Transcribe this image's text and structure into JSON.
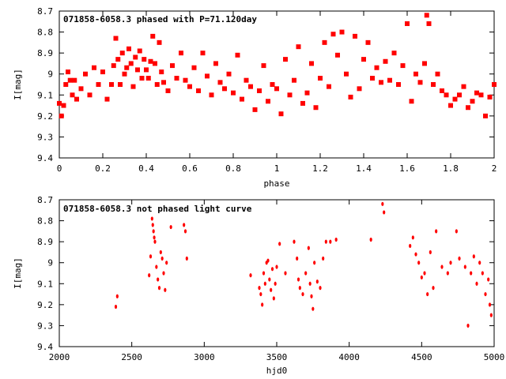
{
  "colors": {
    "points": "#ff0000",
    "axes": "#000000",
    "background": "#ffffff"
  },
  "chart_data": [
    {
      "type": "scatter",
      "title": "071858-6058.3 phased with P=71.120day",
      "xlabel": "phase",
      "ylabel": "I[mag]",
      "xlim": [
        0,
        2
      ],
      "ylim": [
        9.4,
        8.7
      ],
      "y_inverted": true,
      "x_ticks": [
        "0",
        "0.2",
        "0.4",
        "0.6",
        "0.8",
        "1",
        "1.2",
        "1.4",
        "1.6",
        "1.8",
        "2"
      ],
      "y_ticks": [
        "8.7",
        "8.8",
        "8.9",
        "9",
        "9.1",
        "9.2",
        "9.3",
        "9.4"
      ],
      "grid": false,
      "series": [
        {
          "x": [
            0.0,
            0.01,
            0.02,
            0.03,
            0.04,
            0.05,
            0.06,
            0.07,
            0.08,
            0.1,
            0.12,
            0.14,
            0.16,
            0.18,
            0.2,
            0.22,
            0.24,
            0.25,
            0.26,
            0.27,
            0.28,
            0.29,
            0.3,
            0.31,
            0.32,
            0.33,
            0.34,
            0.35,
            0.36,
            0.37,
            0.38,
            0.39,
            0.4,
            0.41,
            0.42,
            0.43,
            0.44,
            0.45,
            0.46,
            0.47,
            0.48,
            0.5,
            0.52,
            0.54,
            0.56,
            0.58,
            0.6,
            0.62,
            0.64,
            0.66,
            0.68,
            0.7,
            0.72,
            0.74,
            0.76,
            0.78,
            0.8,
            0.82,
            0.84,
            0.86,
            0.88,
            0.9,
            0.92,
            0.94,
            0.96,
            0.98,
            1.0,
            1.02,
            1.04,
            1.06,
            1.08,
            1.1,
            1.12,
            1.14,
            1.16,
            1.18,
            1.2,
            1.22,
            1.24,
            1.26,
            1.28,
            1.3,
            1.32,
            1.34,
            1.36,
            1.38,
            1.4,
            1.42,
            1.44,
            1.46,
            1.48,
            1.5,
            1.52,
            1.54,
            1.56,
            1.58,
            1.6,
            1.62,
            1.64,
            1.66,
            1.68,
            1.69,
            1.7,
            1.72,
            1.74,
            1.76,
            1.78,
            1.8,
            1.82,
            1.84,
            1.86,
            1.88,
            1.9,
            1.92,
            1.94,
            1.96,
            1.98,
            2.0
          ],
          "y": [
            9.14,
            9.2,
            9.15,
            9.05,
            8.99,
            9.03,
            9.1,
            9.03,
            9.12,
            9.07,
            9.0,
            9.1,
            8.97,
            9.05,
            8.99,
            9.12,
            9.05,
            8.96,
            8.83,
            8.93,
            9.05,
            8.9,
            9.0,
            8.97,
            8.88,
            8.95,
            9.06,
            8.92,
            8.98,
            8.89,
            9.02,
            8.93,
            8.98,
            9.02,
            8.94,
            8.82,
            8.95,
            9.05,
            8.85,
            8.99,
            9.04,
            9.08,
            8.96,
            9.02,
            8.9,
            9.03,
            9.06,
            8.97,
            9.08,
            8.9,
            9.01,
            9.1,
            8.95,
            9.04,
            9.07,
            9.0,
            9.09,
            8.91,
            9.12,
            9.03,
            9.06,
            9.17,
            9.08,
            8.96,
            9.13,
            9.05,
            9.07,
            9.19,
            8.93,
            9.1,
            9.03,
            8.87,
            9.14,
            9.09,
            8.95,
            9.16,
            9.02,
            8.85,
            9.06,
            8.81,
            8.91,
            8.8,
            9.0,
            9.11,
            8.82,
            9.07,
            8.93,
            8.85,
            9.02,
            8.97,
            9.04,
            8.94,
            9.03,
            8.9,
            9.05,
            8.96,
            8.76,
            9.13,
            9.0,
            9.04,
            8.95,
            8.72,
            8.76,
            9.05,
            9.0,
            9.08,
            9.1,
            9.15,
            9.12,
            9.1,
            9.06,
            9.16,
            9.13,
            9.09,
            9.1,
            9.2,
            9.11,
            9.05
          ],
          "marker": "square-dot"
        }
      ]
    },
    {
      "type": "scatter",
      "title": "071858-6058.3 not phased light curve",
      "xlabel": "hjd0",
      "ylabel": "I[mag]",
      "xlim": [
        2000,
        5000
      ],
      "ylim": [
        9.4,
        8.7
      ],
      "y_inverted": true,
      "x_ticks": [
        "2000",
        "2500",
        "3000",
        "3500",
        "4000",
        "4500",
        "5000"
      ],
      "y_ticks": [
        "8.7",
        "8.8",
        "8.9",
        "9",
        "9.1",
        "9.2",
        "9.3",
        "9.4"
      ],
      "grid": false,
      "series": [
        {
          "x": [
            2390,
            2400,
            2620,
            2630,
            2640,
            2645,
            2650,
            2655,
            2660,
            2670,
            2680,
            2690,
            2700,
            2710,
            2720,
            2730,
            2740,
            2770,
            2860,
            2870,
            2880,
            3320,
            3380,
            3390,
            3400,
            3410,
            3420,
            3430,
            3440,
            3450,
            3460,
            3470,
            3480,
            3490,
            3500,
            3520,
            3560,
            3620,
            3640,
            3650,
            3660,
            3680,
            3700,
            3720,
            3730,
            3740,
            3750,
            3760,
            3780,
            3800,
            3820,
            3840,
            3870,
            3910,
            4150,
            4230,
            4240,
            4420,
            4440,
            4460,
            4480,
            4500,
            4520,
            4540,
            4560,
            4580,
            4600,
            4640,
            4680,
            4700,
            4740,
            4760,
            4800,
            4820,
            4840,
            4860,
            4880,
            4900,
            4920,
            4940,
            4960,
            4970,
            4980
          ],
          "y": [
            9.21,
            9.16,
            9.06,
            8.97,
            8.79,
            8.82,
            8.85,
            8.88,
            8.9,
            9.02,
            9.08,
            9.12,
            8.95,
            8.98,
            9.05,
            9.13,
            9.0,
            8.83,
            8.82,
            8.85,
            8.98,
            9.06,
            9.12,
            9.15,
            9.2,
            9.05,
            9.1,
            9.0,
            8.99,
            9.08,
            9.13,
            9.03,
            9.17,
            9.1,
            9.02,
            8.91,
            9.05,
            8.9,
            8.98,
            9.08,
            9.12,
            9.15,
            9.05,
            8.93,
            9.1,
            9.16,
            9.22,
            9.0,
            9.09,
            9.12,
            8.98,
            8.9,
            8.9,
            8.89,
            8.89,
            8.72,
            8.76,
            8.92,
            8.88,
            8.96,
            9.0,
            9.07,
            9.05,
            9.15,
            8.95,
            9.12,
            8.85,
            9.02,
            9.05,
            9.0,
            8.85,
            8.98,
            9.02,
            9.3,
            9.05,
            8.97,
            9.1,
            9.0,
            9.05,
            9.15,
            9.08,
            9.2,
            9.25
          ],
          "marker": "dot"
        }
      ]
    }
  ]
}
